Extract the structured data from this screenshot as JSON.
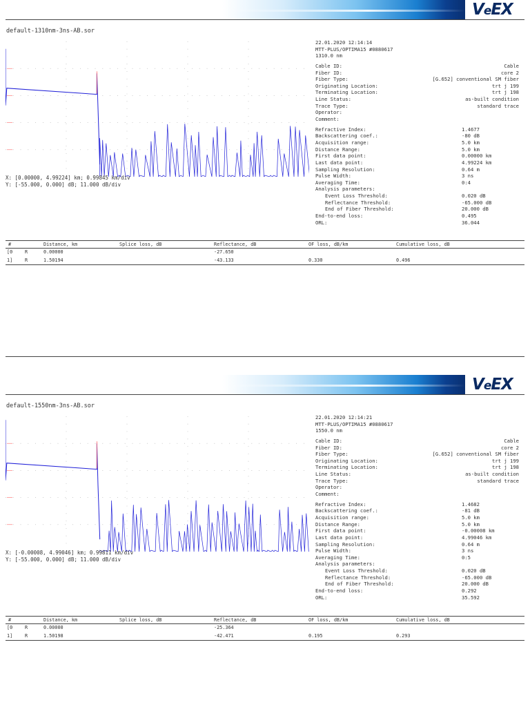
{
  "brand": {
    "logo_v": "V",
    "logo_e": "e",
    "logo_x": "EX"
  },
  "colors": {
    "trace": "#2020d8",
    "marker": "#ff6666",
    "grid": "#9a9a9a"
  },
  "table_headers": [
    "#",
    "Distance, km",
    "Splice loss, dB",
    "Reflectance, dB",
    "OF loss, dB/km",
    "Cumulative loss, dB"
  ],
  "reports": [
    {
      "filename": "default-1310nm-3ns-AB.sor",
      "x_info": "X: [0.00000, 4.99224] km; 0.99845 km/div",
      "y_info": "Y: [-55.000, 0.000] dB; 11.000 dB/div",
      "date_time": "22.01.2020   12:14:14",
      "device": "MTT-PLUS/OPTIMA15 #0880617",
      "wavelength": "1310.0 nm",
      "cable_id": "Cable",
      "fiber_id": "core 2",
      "fiber_type": "[G.652] conventional SM fiber",
      "orig_location": "trt j 199",
      "term_location": "trt j 198",
      "line_status": "as-built condition",
      "trace_type": "standard trace",
      "operator": "",
      "comment": "",
      "refractive_index": "1.4677",
      "backscatter": "-80 dB",
      "acq_range": "5.0 km",
      "distance_range": "5.0 km",
      "first_point": "0.00000 km",
      "last_point": "4.99224 km",
      "sampling": "0.64 m",
      "pulse_width": "3 ns",
      "averaging": "0:4",
      "event_loss_thr": "0.020 dB",
      "reflectance_thr": "-65.000 dB",
      "eof_thr": "20.000 dB",
      "e2e_loss": "0.495",
      "orl": "36.044",
      "events": [
        {
          "n": "[0",
          "t": "R",
          "dist": "0.00000",
          "splice": "",
          "refl": "-27.650",
          "of": "",
          "cum": ""
        },
        {
          "n": " 1]",
          "t": "R",
          "dist": "1.50194",
          "splice": "",
          "refl": "-43.133",
          "of": "0.330",
          "cum": "0.496"
        }
      ]
    },
    {
      "filename": "default-1550nm-3ns-AB.sor",
      "x_info": "X: [-0.00008, 4.99046] km; 0.99811 km/div",
      "y_info": "Y: [-55.000, 0.000] dB; 11.000 dB/div",
      "date_time": "22.01.2020   12:14:21",
      "device": "MTT-PLUS/OPTIMA15 #0880617",
      "wavelength": "1550.0 nm",
      "cable_id": "Cable",
      "fiber_id": "core 2",
      "fiber_type": "[G.652] conventional SM fiber",
      "orig_location": "trt j 199",
      "term_location": "trt j 198",
      "line_status": "as-built condition",
      "trace_type": "standard trace",
      "operator": "",
      "comment": "",
      "refractive_index": "1.4682",
      "backscatter": "-81 dB",
      "acq_range": "5.0 km",
      "distance_range": "5.0 km",
      "first_point": "-0.00008 km",
      "last_point": "4.99046 km",
      "sampling": "0.64 m",
      "pulse_width": "3 ns",
      "averaging": "0:5",
      "event_loss_thr": "0.020 dB",
      "reflectance_thr": "-65.000 dB",
      "eof_thr": "20.000 dB",
      "e2e_loss": "0.292",
      "orl": "35.592",
      "events": [
        {
          "n": "[0",
          "t": "R",
          "dist": "0.00000",
          "splice": "",
          "refl": "-25.364",
          "of": "",
          "cum": ""
        },
        {
          "n": " 1]",
          "t": "R",
          "dist": "1.50198",
          "splice": "",
          "refl": "-42.471",
          "of": "0.195",
          "cum": "0.293"
        }
      ]
    }
  ],
  "labels": {
    "cable_id": "Cable ID:",
    "fiber_id": "Fiber ID:",
    "fiber_type": "Fiber Type:",
    "orig_location": "Originating Location:",
    "term_location": "Terminating Location:",
    "line_status": "Line Status:",
    "trace_type": "Trace Type:",
    "operator": "Operator:",
    "comment": "Comment:",
    "refractive_index": "Refractive Index:",
    "backscatter": "Backscattering coef.:",
    "acq_range": "Acquisition range:",
    "distance_range": "Distance Range:",
    "first_point": "First data point:",
    "last_point": "Last data point:",
    "sampling": "Sampling Resolution:",
    "pulse_width": "Pulse Width:",
    "averaging": "Averaging Time:",
    "analysis": "Analysis parameters:",
    "event_loss_thr": "Event Loss Threshold:",
    "reflectance_thr": "Reflectance Threshold:",
    "eof_thr": "End of Fiber Threshold:",
    "e2e_loss": "End-to-end loss:",
    "orl": "ORL:"
  },
  "chart_data": [
    {
      "type": "line",
      "title": "",
      "xlim": [
        0.0,
        4.99224
      ],
      "ylim": [
        -55.0,
        0.0
      ],
      "x_unit": "km",
      "y_unit": "dB",
      "grid": true,
      "series": [
        {
          "x": [
            0.0,
            0.0,
            0.02,
            1.5,
            1.50194,
            1.52,
            1.55
          ],
          "y": [
            -3.0,
            -26.0,
            -19.0,
            -21.5,
            -13.0,
            -27.0,
            -50.0
          ]
        }
      ],
      "noise_floor_from_km": 1.55,
      "noise_level_range_db": [
        -55.0,
        -33.0
      ]
    },
    {
      "type": "line",
      "title": "",
      "xlim": [
        -8e-05,
        4.99046
      ],
      "ylim": [
        -55.0,
        0.0
      ],
      "x_unit": "km",
      "y_unit": "dB",
      "grid": true,
      "series": [
        {
          "x": [
            0.0,
            0.0,
            0.02,
            1.5,
            1.50198,
            1.52,
            1.55
          ],
          "y": [
            -1.5,
            -26.0,
            -19.0,
            -21.5,
            -11.0,
            -28.0,
            -50.0
          ]
        }
      ],
      "noise_floor_from_km": 1.55,
      "noise_level_range_db": [
        -55.0,
        -34.0
      ]
    }
  ]
}
